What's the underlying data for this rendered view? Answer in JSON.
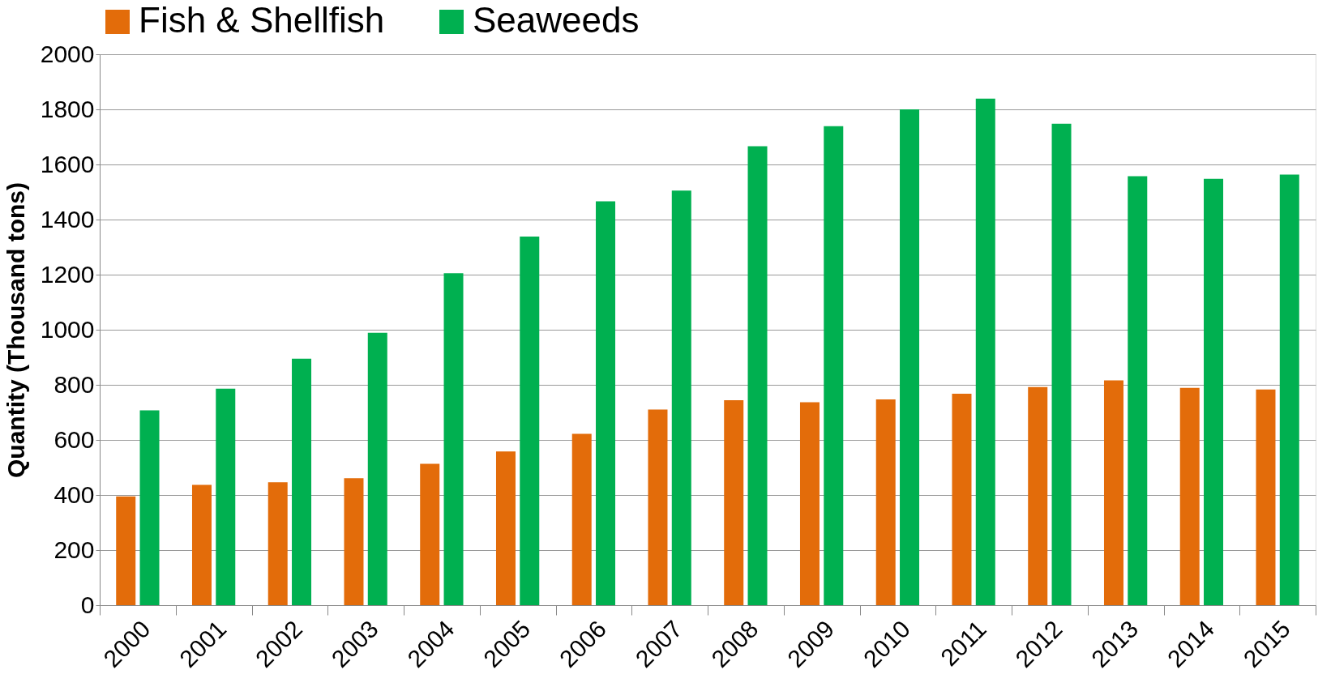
{
  "chart_data": {
    "type": "bar",
    "ylabel": "Quantity (Thousand tons)",
    "categories": [
      "2000",
      "2001",
      "2002",
      "2003",
      "2004",
      "2005",
      "2006",
      "2007",
      "2008",
      "2009",
      "2010",
      "2011",
      "2012",
      "2013",
      "2014",
      "2015"
    ],
    "series": [
      {
        "name": "Fish & Shellfish",
        "color": "#e36c0a",
        "values": [
          395,
          437,
          446,
          461,
          513,
          558,
          622,
          710,
          744,
          737,
          747,
          768,
          792,
          816,
          789,
          783
        ]
      },
      {
        "name": "Seaweeds",
        "color": "#00b050",
        "values": [
          707,
          786,
          895,
          989,
          1205,
          1338,
          1466,
          1505,
          1666,
          1739,
          1800,
          1839,
          1748,
          1557,
          1548,
          1563
        ]
      }
    ],
    "ylim": [
      0,
      2000
    ],
    "yticks": [
      0,
      200,
      400,
      600,
      800,
      1000,
      1200,
      1400,
      1600,
      1800,
      2000
    ],
    "grid": "y",
    "legend": "top"
  }
}
